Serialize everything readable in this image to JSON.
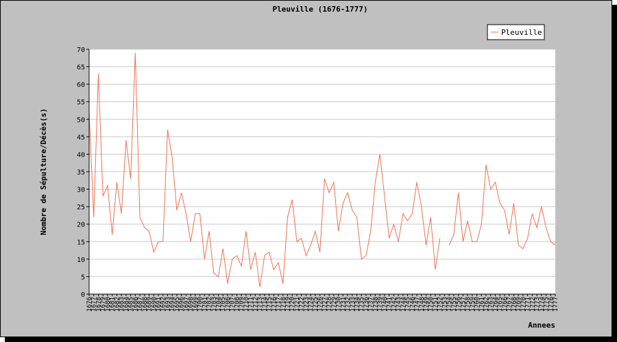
{
  "chart_data": {
    "type": "line",
    "title": "Pleuville (1676-1777)",
    "xlabel": "Annees",
    "ylabel": "Nombre de Sépulture/Décès(s)",
    "ylim": [
      0,
      70
    ],
    "yticks": [
      0,
      5,
      10,
      15,
      20,
      25,
      30,
      35,
      40,
      45,
      50,
      55,
      60,
      65,
      70
    ],
    "grid": true,
    "legend": "top-right",
    "x": [
      1676,
      1677,
      1678,
      1679,
      1680,
      1681,
      1682,
      1683,
      1684,
      1685,
      1686,
      1687,
      1688,
      1689,
      1690,
      1691,
      1692,
      1693,
      1694,
      1695,
      1696,
      1697,
      1698,
      1699,
      1700,
      1701,
      1702,
      1703,
      1704,
      1705,
      1706,
      1707,
      1708,
      1709,
      1710,
      1711,
      1712,
      1713,
      1714,
      1715,
      1716,
      1717,
      1718,
      1719,
      1720,
      1721,
      1722,
      1723,
      1724,
      1725,
      1726,
      1727,
      1728,
      1729,
      1730,
      1731,
      1732,
      1733,
      1734,
      1735,
      1736,
      1737,
      1738,
      1739,
      1740,
      1741,
      1742,
      1743,
      1744,
      1745,
      1746,
      1747,
      1748,
      1749,
      1750,
      1751,
      1752,
      1753,
      1754,
      1755,
      1756,
      1757,
      1758,
      1759,
      1760,
      1761,
      1762,
      1763,
      1764,
      1765,
      1766,
      1767,
      1768,
      1769,
      1770,
      1771,
      1772,
      1773,
      1774,
      1775,
      1776,
      1777
    ],
    "series": [
      {
        "name": "Pleuville",
        "color": "#f07050",
        "values": [
          52,
          22,
          63,
          28,
          31,
          17,
          32,
          23,
          44,
          33,
          69,
          22,
          19,
          18,
          12,
          15,
          15,
          47,
          39,
          24,
          29,
          23,
          15,
          23,
          23,
          10,
          18,
          6,
          5,
          13,
          3,
          10,
          11,
          8,
          18,
          7,
          12,
          2,
          11,
          12,
          7,
          9,
          3,
          22,
          27,
          15,
          16,
          11,
          14,
          18,
          12,
          33,
          29,
          32,
          18,
          26,
          29,
          24,
          22,
          10,
          11,
          18,
          32,
          40,
          28,
          16,
          20,
          15,
          23,
          21,
          23,
          32,
          25,
          14,
          22,
          7,
          16,
          null,
          14,
          17,
          29,
          15,
          21,
          15,
          15,
          20,
          37,
          30,
          32,
          26,
          24,
          17,
          26,
          14,
          13,
          16,
          23,
          19,
          25,
          19,
          15,
          14
        ]
      }
    ]
  }
}
